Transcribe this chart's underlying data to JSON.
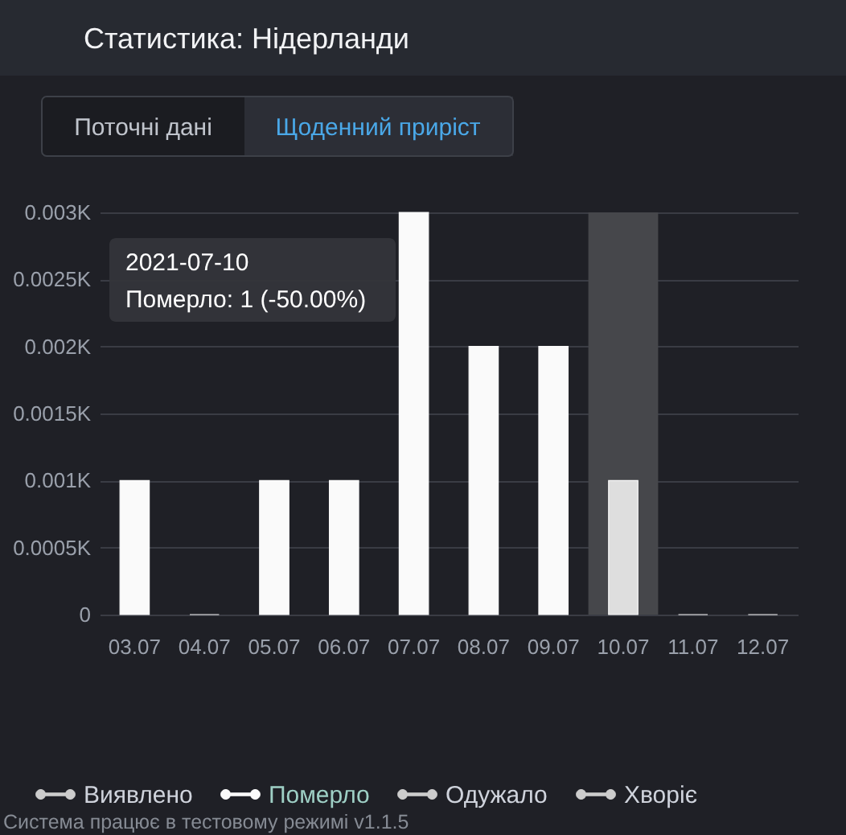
{
  "chart_data": {
    "type": "bar",
    "title": "Статистика: Нідерланди",
    "categories": [
      "03.07",
      "04.07",
      "05.07",
      "06.07",
      "07.07",
      "08.07",
      "09.07",
      "10.07",
      "11.07",
      "12.07"
    ],
    "series": [
      {
        "name": "Виявлено",
        "color": "#cccccc",
        "values": [
          null,
          null,
          null,
          null,
          null,
          null,
          null,
          null,
          null,
          null
        ]
      },
      {
        "name": "Померло",
        "color": "#fafafa",
        "colors": [
          "#fafafa",
          "#fafafa",
          "#fafafa",
          "#fafafa",
          "#fafafa",
          "#fafafa",
          "#fafafa",
          "#dedede",
          "#fafafa",
          "#fafafa"
        ],
        "values": [
          0.001,
          0,
          0.001,
          0.001,
          0.003,
          0.002,
          0.002,
          0.001,
          0,
          0
        ]
      },
      {
        "name": "Одужало",
        "color": "#cccccc",
        "values": [
          null,
          null,
          null,
          null,
          null,
          null,
          null,
          null,
          null,
          null
        ]
      },
      {
        "name": "Хворіє",
        "color": "#cccccc",
        "values": [
          null,
          null,
          null,
          null,
          null,
          null,
          null,
          null,
          null,
          null
        ]
      }
    ],
    "ylim": [
      0,
      0.003
    ],
    "yticks": [
      0,
      {
        "value": 0.0005,
        "label": "0.0005K"
      },
      {
        "value": 0.001,
        "label": "0.001K"
      },
      {
        "value": 0.0015,
        "label": "0.0015K"
      },
      {
        "value": 0.002,
        "label": "0.002K"
      },
      {
        "value": 0.0025,
        "label": "0.0025K"
      },
      {
        "value": 0.003,
        "label": "0.003K"
      }
    ],
    "grid": "y",
    "legend": "bottom",
    "bands": [
      {
        "axis": "x",
        "from": "10.07",
        "to": "10.07",
        "color": "#46474b"
      }
    ],
    "annotations": [
      "Поточні дані",
      "Щоденний приріст",
      "2021-07-10",
      "Померло: 1 (-50.00%)",
      "Система працює в тестовому режимі v1.1.5"
    ]
  }
}
